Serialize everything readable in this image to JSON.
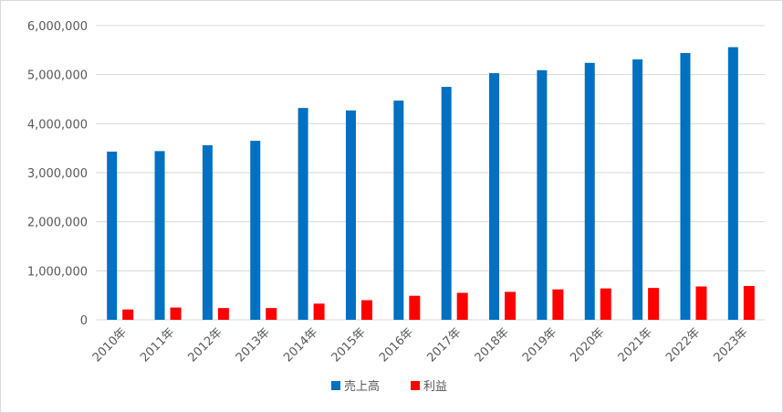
{
  "chart_data": {
    "type": "bar",
    "title": "",
    "xlabel": "",
    "ylabel": "",
    "categories": [
      "2010年",
      "2011年",
      "2012年",
      "2013年",
      "2014年",
      "2015年",
      "2016年",
      "2017年",
      "2018年",
      "2019年",
      "2020年",
      "2021年",
      "2022年",
      "2023年"
    ],
    "series": [
      {
        "name": "売上高",
        "color": "#0070C0",
        "values": [
          3430000,
          3440000,
          3560000,
          3650000,
          4320000,
          4270000,
          4470000,
          4750000,
          5030000,
          5090000,
          5240000,
          5310000,
          5440000,
          5560000
        ]
      },
      {
        "name": "利益",
        "color": "#FF0000",
        "values": [
          210000,
          250000,
          240000,
          240000,
          330000,
          400000,
          490000,
          550000,
          570000,
          620000,
          640000,
          650000,
          680000,
          690000
        ]
      }
    ],
    "ylim": [
      0,
      6000000
    ],
    "yticks": [
      0,
      1000000,
      2000000,
      3000000,
      4000000,
      5000000,
      6000000
    ],
    "ytick_labels": [
      "0",
      "1,000,000",
      "2,000,000",
      "3,000,000",
      "4,000,000",
      "5,000,000",
      "6,000,000"
    ],
    "grid": true,
    "legend_position": "bottom"
  }
}
